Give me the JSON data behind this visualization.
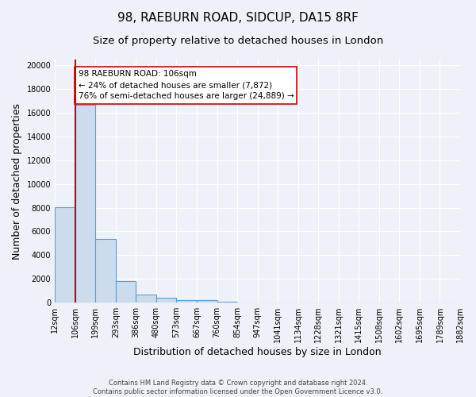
{
  "title": "98, RAEBURN ROAD, SIDCUP, DA15 8RF",
  "subtitle": "Size of property relative to detached houses in London",
  "xlabel": "Distribution of detached houses by size in London",
  "ylabel": "Number of detached properties",
  "bin_labels": [
    "12sqm",
    "106sqm",
    "199sqm",
    "293sqm",
    "386sqm",
    "480sqm",
    "573sqm",
    "667sqm",
    "760sqm",
    "854sqm",
    "947sqm",
    "1041sqm",
    "1134sqm",
    "1228sqm",
    "1321sqm",
    "1415sqm",
    "1508sqm",
    "1602sqm",
    "1695sqm",
    "1789sqm",
    "1882sqm"
  ],
  "bar_heights": [
    8050,
    16700,
    5350,
    1800,
    700,
    380,
    230,
    180,
    100,
    0,
    0,
    0,
    0,
    0,
    0,
    0,
    0,
    0,
    0,
    0
  ],
  "bar_color": "#cddcec",
  "bar_edge_color": "#5b9bd5",
  "property_bin_index": 1,
  "property_line_color": "#cc0000",
  "annotation_text": "98 RAEBURN ROAD: 106sqm\n← 24% of detached houses are smaller (7,872)\n76% of semi-detached houses are larger (24,889) →",
  "annotation_box_color": "#ffffff",
  "annotation_box_edge": "#cc0000",
  "ylim": [
    0,
    20500
  ],
  "yticks": [
    0,
    2000,
    4000,
    6000,
    8000,
    10000,
    12000,
    14000,
    16000,
    18000,
    20000
  ],
  "background_color": "#eef2f8",
  "grid_color": "#ffffff",
  "footer_line1": "Contains HM Land Registry data © Crown copyright and database right 2024.",
  "footer_line2": "Contains public sector information licensed under the Open Government Licence v3.0.",
  "title_fontsize": 11,
  "subtitle_fontsize": 9.5,
  "axis_label_fontsize": 9,
  "tick_fontsize": 7,
  "annot_fontsize": 7.5
}
